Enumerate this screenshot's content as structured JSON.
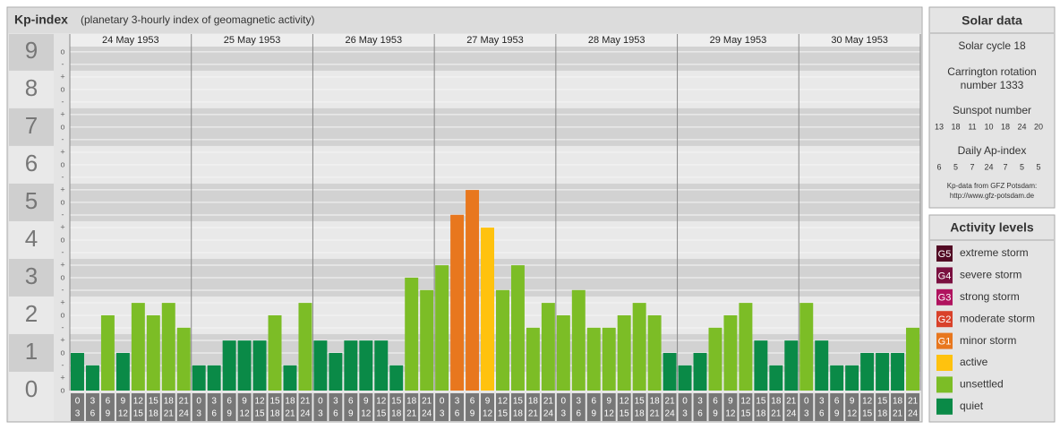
{
  "chart_data": {
    "type": "bar",
    "title": "Kp-index",
    "subtitle": "(planetary 3-hourly index of geomagnetic activity)",
    "days": [
      "24 May 1953",
      "25 May 1953",
      "26 May 1953",
      "27 May 1953",
      "28 May 1953",
      "29 May 1953",
      "30 May 1953"
    ],
    "hour_labels": [
      [
        "0",
        "3"
      ],
      [
        "3",
        "6"
      ],
      [
        "6",
        "9"
      ],
      [
        "9",
        "12"
      ],
      [
        "12",
        "15"
      ],
      [
        "15",
        "18"
      ],
      [
        "18",
        "21"
      ],
      [
        "21",
        "24"
      ]
    ],
    "values": [
      1,
      0.67,
      2,
      1,
      2.33,
      2,
      2.33,
      1.67,
      0.67,
      0.67,
      1.33,
      1.33,
      1.33,
      2,
      0.67,
      2.33,
      1.33,
      1,
      1.33,
      1.33,
      1.33,
      0.67,
      3,
      2.67,
      3.33,
      4.67,
      5.33,
      4.33,
      2.67,
      3.33,
      1.67,
      2.33,
      2,
      2.67,
      1.67,
      1.67,
      2,
      2.33,
      2,
      1,
      0.67,
      1,
      1.67,
      2,
      2.33,
      1.33,
      0.67,
      1.33,
      2.33,
      1.33,
      0.67,
      0.67,
      1,
      1,
      1,
      1.67
    ],
    "colors": [
      "#0a8a47",
      "#0a8a47",
      "#7cbd26",
      "#0a8a47",
      "#7cbd26",
      "#7cbd26",
      "#7cbd26",
      "#7cbd26",
      "#0a8a47",
      "#0a8a47",
      "#0a8a47",
      "#0a8a47",
      "#0a8a47",
      "#7cbd26",
      "#0a8a47",
      "#7cbd26",
      "#0a8a47",
      "#0a8a47",
      "#0a8a47",
      "#0a8a47",
      "#0a8a47",
      "#0a8a47",
      "#7cbd26",
      "#7cbd26",
      "#7cbd26",
      "#e8771e",
      "#e8771e",
      "#ffc20e",
      "#7cbd26",
      "#7cbd26",
      "#7cbd26",
      "#7cbd26",
      "#7cbd26",
      "#7cbd26",
      "#7cbd26",
      "#7cbd26",
      "#7cbd26",
      "#7cbd26",
      "#7cbd26",
      "#0a8a47",
      "#0a8a47",
      "#0a8a47",
      "#7cbd26",
      "#7cbd26",
      "#7cbd26",
      "#0a8a47",
      "#0a8a47",
      "#0a8a47",
      "#7cbd26",
      "#0a8a47",
      "#0a8a47",
      "#0a8a47",
      "#0a8a47",
      "#0a8a47",
      "#0a8a47",
      "#7cbd26"
    ],
    "ylim": [
      0,
      9.14
    ],
    "yticks": [
      0,
      1,
      2,
      3,
      4,
      5,
      6,
      7,
      8,
      9
    ],
    "subtick_labels": [
      "o",
      "+",
      "-"
    ],
    "grid": true
  },
  "solar_data": {
    "title": "Solar data",
    "cycle": "Solar cycle 18",
    "carrington": [
      "Carrington rotation",
      "number 1333"
    ],
    "sunspot_title": "Sunspot number",
    "sunspot": [
      13,
      18,
      11,
      10,
      18,
      24,
      20
    ],
    "ap_title": "Daily Ap-index",
    "ap": [
      6,
      5,
      7,
      24,
      7,
      5,
      5
    ],
    "note": [
      "Kp-data from GFZ Potsdam:",
      "http://www.gfz-potsdam.de"
    ]
  },
  "activity_levels": {
    "title": "Activity levels",
    "items": [
      {
        "badge": "G5",
        "name": "extreme storm",
        "color": "#520a24"
      },
      {
        "badge": "G4",
        "name": "severe storm",
        "color": "#7a1040"
      },
      {
        "badge": "G3",
        "name": "strong storm",
        "color": "#b0135f"
      },
      {
        "badge": "G2",
        "name": "moderate storm",
        "color": "#d9412a"
      },
      {
        "badge": "G1",
        "name": "minor storm",
        "color": "#e8771e"
      },
      {
        "name": "active",
        "color": "#ffc20e"
      },
      {
        "name": "unsettled",
        "color": "#7cbd26"
      },
      {
        "name": "quiet",
        "color": "#0a8a47"
      }
    ]
  }
}
